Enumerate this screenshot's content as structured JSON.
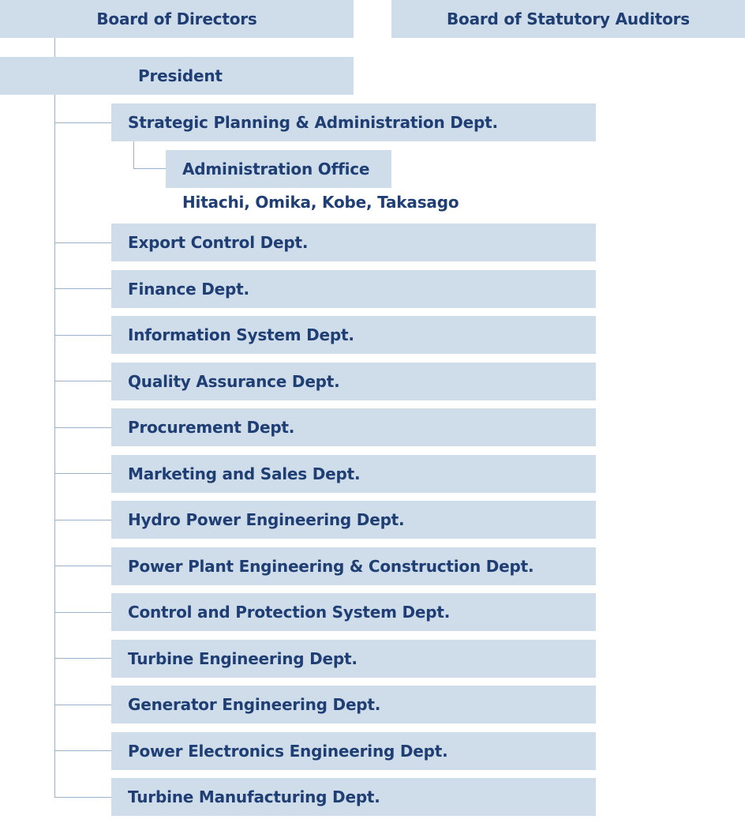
{
  "board_of_directors": "Board of Directors",
  "board_of_auditors": "Board of Statutory Auditors",
  "president": "President",
  "strategic_dept": "Strategic Planning & Administration Dept.",
  "admin_office": {
    "label": "Administration Office",
    "locations": "Hitachi, Omika, Kobe, Takasago"
  },
  "departments": [
    "Export Control Dept.",
    "Finance Dept.",
    "Information System Dept.",
    "Quality Assurance Dept.",
    "Procurement Dept.",
    "Marketing and Sales Dept.",
    "Hydro Power Engineering Dept.",
    "Power Plant Engineering & Construction Dept.",
    "Control and Protection System Dept.",
    "Turbine Engineering Dept.",
    "Generator Engineering Dept.",
    "Power Electronics Engineering Dept.",
    "Turbine Manufacturing Dept."
  ],
  "colors": {
    "box_fill": "#cfdcea",
    "text": "#1f3f74",
    "connector": "#9bb0c9"
  }
}
